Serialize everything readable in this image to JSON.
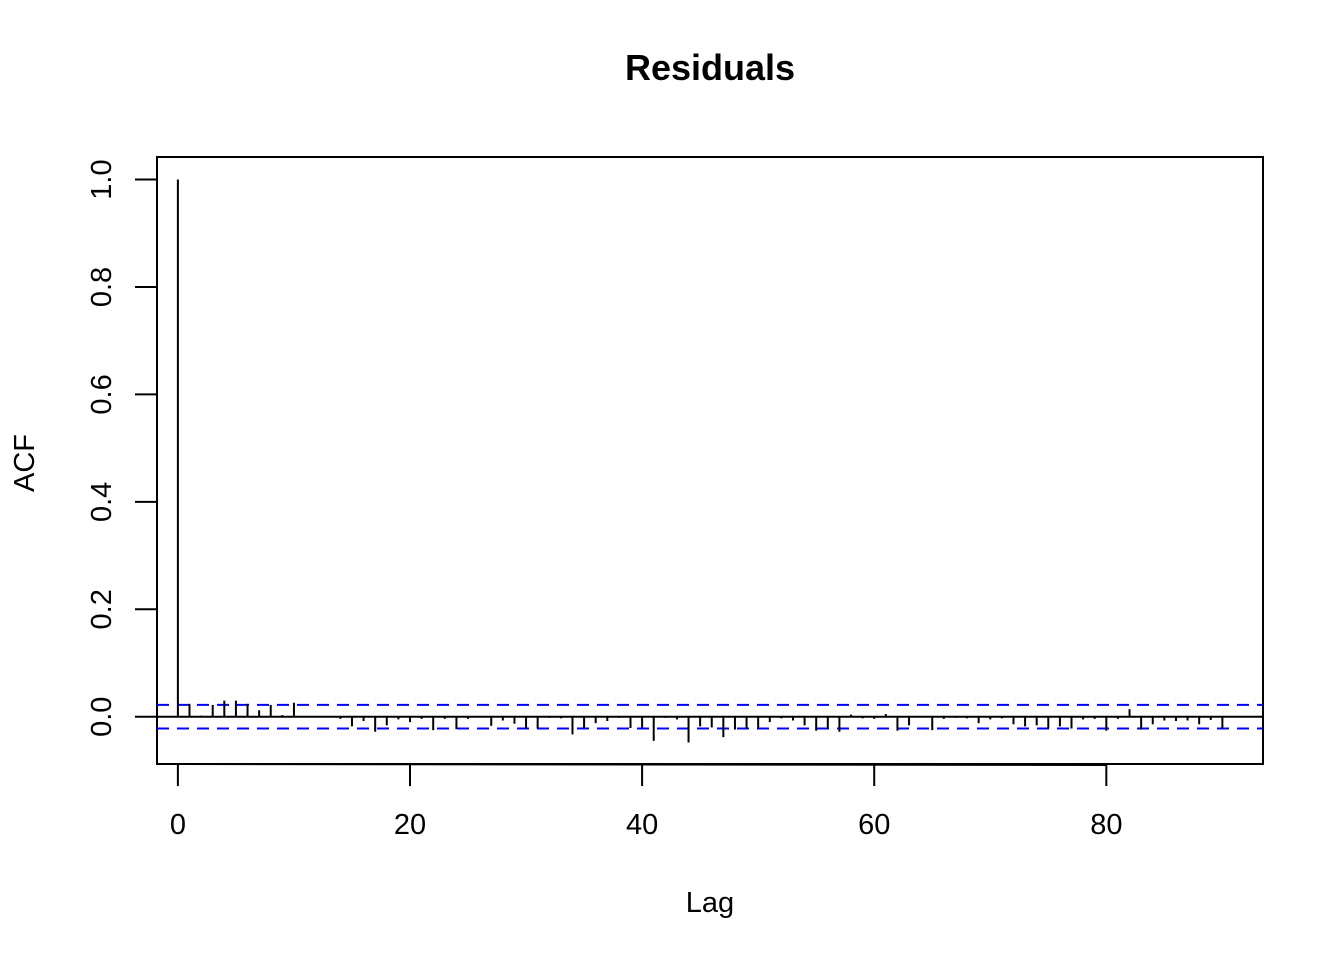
{
  "chart_data": {
    "type": "bar",
    "title": "Residuals",
    "xlabel": "Lag",
    "ylabel": "ACF",
    "xlim": [
      -1.8,
      93.5
    ],
    "ylim": [
      -0.088,
      1.042
    ],
    "x_ticks": [
      0,
      20,
      40,
      60,
      80
    ],
    "x_tick_labels": [
      "0",
      "20",
      "40",
      "60",
      "80"
    ],
    "y_ticks": [
      0.0,
      0.2,
      0.4,
      0.6,
      0.8,
      1.0
    ],
    "y_tick_labels": [
      "0.0",
      "0.2",
      "0.4",
      "0.6",
      "0.8",
      "1.0"
    ],
    "confidence_bound": 0.022,
    "confidence_color": "#0000ff",
    "lags": [
      0,
      1,
      2,
      3,
      4,
      5,
      6,
      7,
      8,
      9,
      10,
      11,
      12,
      13,
      14,
      15,
      16,
      17,
      18,
      19,
      20,
      21,
      22,
      23,
      24,
      25,
      26,
      27,
      28,
      29,
      30,
      31,
      32,
      33,
      34,
      35,
      36,
      37,
      38,
      39,
      40,
      41,
      42,
      43,
      44,
      45,
      46,
      47,
      48,
      49,
      50,
      51,
      52,
      53,
      54,
      55,
      56,
      57,
      58,
      59,
      60,
      61,
      62,
      63,
      64,
      65,
      66,
      67,
      68,
      69,
      70,
      71,
      72,
      73,
      74,
      75,
      76,
      77,
      78,
      79,
      80,
      81,
      82,
      83,
      84,
      85,
      86,
      87,
      88,
      89,
      90
    ],
    "values": [
      1.0,
      0.024,
      0.002,
      0.022,
      0.03,
      0.03,
      0.024,
      0.012,
      0.022,
      0.003,
      0.026,
      0.001,
      0.001,
      -0.001,
      -0.004,
      -0.018,
      -0.008,
      -0.028,
      -0.016,
      -0.005,
      -0.01,
      -0.004,
      -0.025,
      -0.004,
      -0.023,
      -0.004,
      0.001,
      -0.017,
      -0.007,
      -0.013,
      -0.022,
      -0.022,
      -0.002,
      -0.003,
      -0.033,
      -0.021,
      -0.012,
      -0.008,
      -0.002,
      -0.021,
      -0.02,
      -0.045,
      -0.002,
      -0.005,
      -0.048,
      -0.018,
      -0.02,
      -0.038,
      -0.024,
      -0.022,
      -0.022,
      -0.01,
      -0.003,
      -0.007,
      -0.016,
      -0.026,
      -0.022,
      -0.028,
      0.004,
      -0.003,
      -0.004,
      0.005,
      -0.026,
      -0.016,
      -0.001,
      -0.025,
      -0.004,
      -0.002,
      -0.003,
      -0.012,
      -0.005,
      -0.003,
      -0.014,
      -0.018,
      -0.016,
      -0.022,
      -0.018,
      -0.022,
      -0.005,
      -0.004,
      -0.026,
      -0.004,
      0.014,
      -0.024,
      -0.014,
      -0.007,
      -0.008,
      -0.007,
      -0.014,
      -0.006,
      -0.022
    ]
  }
}
